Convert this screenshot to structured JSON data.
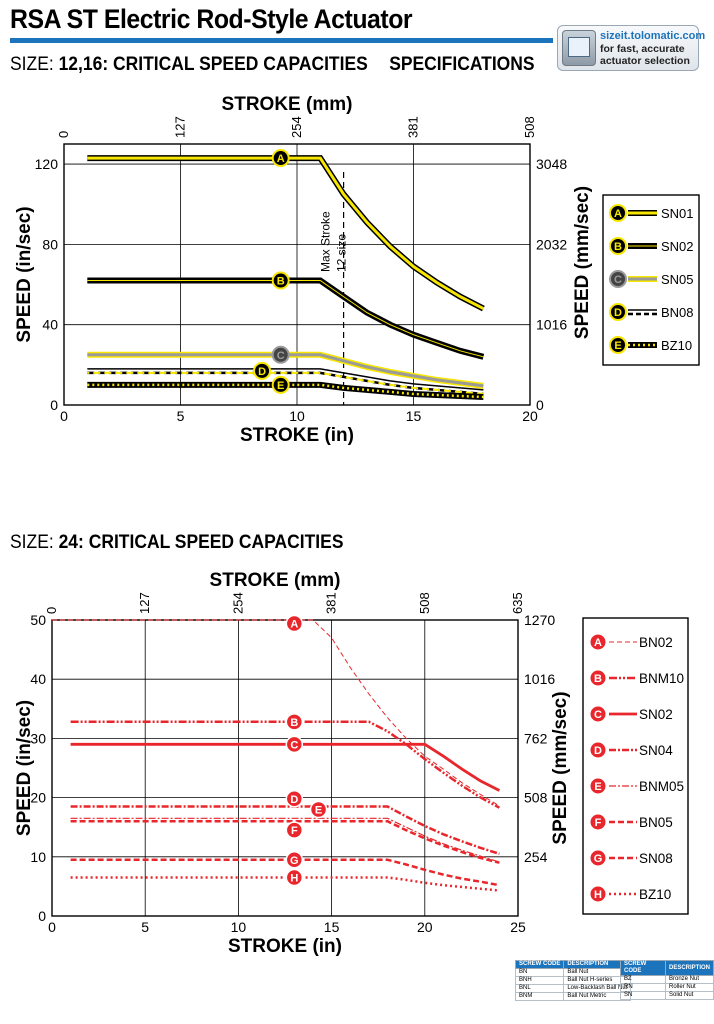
{
  "header": {
    "title": "RSA ST Electric Rod-Style Actuator",
    "accent_color": "#1c74bc",
    "sizeit": {
      "line1": "sizeit.tolomatic.com",
      "line2": "for fast, accurate",
      "line3": "actuator selection",
      "icon": "calculator-screen-icon"
    }
  },
  "section1": {
    "size_label": "SIZE:",
    "size_value": "12,16: CRITICAL SPEED CAPACITIES",
    "specs_label": "SPECIFICATIONS"
  },
  "section2": {
    "size_label": "SIZE:",
    "size_value": "24: CRITICAL SPEED CAPACITIES"
  },
  "chart_data": [
    {
      "type": "line",
      "title": "",
      "xlabel": "STROKE (in)",
      "x2label": "STROKE (mm)",
      "ylabel": "SPEED (in/sec)",
      "y2label": "SPEED (mm/sec)",
      "xlim": [
        0,
        20
      ],
      "ylim": [
        0,
        130
      ],
      "x_ticks": [
        0,
        5,
        10,
        15,
        20
      ],
      "y_ticks": [
        0,
        40,
        80,
        120
      ],
      "x2_ticks": [
        {
          "x": 0,
          "label": "0"
        },
        {
          "x": 5,
          "label": "127"
        },
        {
          "x": 10,
          "label": "254"
        },
        {
          "x": 15,
          "label": "381"
        },
        {
          "x": 20,
          "label": "508"
        }
      ],
      "y2_ticks": [
        {
          "y": 0,
          "label": "0"
        },
        {
          "y": 40,
          "label": "1016"
        },
        {
          "y": 80,
          "label": "2032"
        },
        {
          "y": 120,
          "label": "3048"
        }
      ],
      "grid": true,
      "legend_position": "right",
      "annotation": {
        "text_lines": [
          "Max Stroke",
          "12 size"
        ],
        "x": 12
      },
      "series": [
        {
          "name": "SN01",
          "marker": "A",
          "style": "solid-yellow",
          "label_x": 9.3,
          "x": [
            1,
            11,
            12,
            13,
            14,
            15,
            16,
            17,
            18
          ],
          "y": [
            123,
            123,
            105,
            91,
            79,
            69,
            61,
            54,
            48
          ]
        },
        {
          "name": "SN02",
          "marker": "B",
          "style": "solid-black",
          "label_x": 9.3,
          "x": [
            1,
            11,
            12,
            13,
            14,
            15,
            16,
            17,
            18
          ],
          "y": [
            62,
            62,
            54,
            46,
            40,
            35,
            31,
            27,
            24
          ]
        },
        {
          "name": "SN05",
          "marker": "C",
          "style": "solid-gray",
          "label_x": 9.3,
          "x": [
            1,
            11,
            12,
            13,
            14,
            15,
            16,
            17,
            18
          ],
          "y": [
            25,
            25,
            22,
            19,
            16.5,
            14.5,
            12.5,
            11,
            9.5
          ]
        },
        {
          "name": "BN08",
          "marker": "D",
          "style": "dashed-yellow",
          "label_x": 8.5,
          "x": [
            1,
            11,
            12,
            13,
            14,
            15,
            16,
            17,
            18
          ],
          "y": [
            17,
            17,
            15,
            13,
            11,
            9.5,
            8.5,
            7.5,
            6.5
          ]
        },
        {
          "name": "BZ10",
          "marker": "E",
          "style": "dotted-yellow",
          "label_x": 9.3,
          "x": [
            1,
            11,
            12,
            13,
            14,
            15,
            16,
            17,
            18
          ],
          "y": [
            10,
            10,
            8.5,
            7.5,
            6.5,
            5.5,
            5,
            4.5,
            4
          ]
        }
      ]
    },
    {
      "type": "line",
      "title": "",
      "xlabel": "STROKE (in)",
      "x2label": "STROKE (mm)",
      "ylabel": "SPEED (in/sec)",
      "y2label": "SPEED (mm/sec)",
      "xlim": [
        0,
        25
      ],
      "ylim": [
        0,
        50
      ],
      "x_ticks": [
        0,
        5,
        10,
        15,
        20,
        25
      ],
      "y_ticks": [
        0,
        10,
        20,
        30,
        40,
        50
      ],
      "x2_ticks": [
        {
          "x": 0,
          "label": "0"
        },
        {
          "x": 5,
          "label": "127"
        },
        {
          "x": 10,
          "label": "254"
        },
        {
          "x": 15,
          "label": "381"
        },
        {
          "x": 20,
          "label": "508"
        },
        {
          "x": 25,
          "label": "635"
        }
      ],
      "y2_ticks": [
        {
          "y": 10,
          "label": "254"
        },
        {
          "y": 20,
          "label": "508"
        },
        {
          "y": 30,
          "label": "762"
        },
        {
          "y": 40,
          "label": "1016"
        },
        {
          "y": 50,
          "label": "1270"
        }
      ],
      "grid": true,
      "legend_position": "right",
      "color": "#e8262b",
      "series": [
        {
          "name": "BN02",
          "marker": "A",
          "style": "thin-dash",
          "label_x": 13,
          "label_y": 49.4,
          "x": [
            0,
            14,
            15,
            16,
            17,
            18,
            19,
            20,
            21,
            22,
            23,
            24
          ],
          "y": [
            50,
            50,
            47,
            42,
            37.5,
            33.5,
            30,
            27,
            24.8,
            22.5,
            20.5,
            18.6
          ]
        },
        {
          "name": "BNM10",
          "marker": "B",
          "style": "dash-dot-dot",
          "label_x": 13,
          "label_y": 32.8,
          "x": [
            1,
            17,
            18,
            19,
            20,
            21,
            22,
            23,
            24
          ],
          "y": [
            32.8,
            32.8,
            31.2,
            29,
            26.5,
            24.2,
            22,
            20,
            18.3
          ]
        },
        {
          "name": "SN02",
          "marker": "C",
          "style": "solid",
          "label_x": 13,
          "label_y": 29,
          "x": [
            1,
            20,
            21,
            22,
            23,
            24
          ],
          "y": [
            29,
            29,
            27,
            24.8,
            22.8,
            21.2
          ]
        },
        {
          "name": "SN04",
          "marker": "D",
          "style": "dash-dot",
          "label_x": 13,
          "label_y": 19.8,
          "x": [
            1,
            18,
            19,
            20,
            21,
            22,
            23,
            24
          ],
          "y": [
            18.5,
            18.5,
            16.8,
            15.2,
            13.8,
            12.6,
            11.5,
            10.5
          ]
        },
        {
          "name": "BNM05",
          "marker": "E",
          "style": "thin-dash-dot",
          "label_x": 14.3,
          "label_y": 18,
          "x": [
            1,
            18,
            19,
            20,
            21,
            22,
            23,
            24
          ],
          "y": [
            16.5,
            16.5,
            15,
            13.5,
            12.2,
            11.1,
            10.1,
            9.1
          ]
        },
        {
          "name": "BN05",
          "marker": "F",
          "style": "dash",
          "label_x": 13,
          "label_y": 14.5,
          "x": [
            1,
            18,
            19,
            20,
            21,
            22,
            23,
            24
          ],
          "y": [
            16,
            16,
            14.5,
            13.1,
            11.9,
            10.8,
            9.8,
            9
          ]
        },
        {
          "name": "SN08",
          "marker": "G",
          "style": "dash",
          "label_x": 13,
          "label_y": 9.5,
          "x": [
            1,
            18,
            19,
            20,
            21,
            22,
            23,
            24
          ],
          "y": [
            9.5,
            9.5,
            8.7,
            7.8,
            7,
            6.3,
            5.8,
            5.2
          ]
        },
        {
          "name": "BZ10",
          "marker": "H",
          "style": "dot",
          "label_x": 13,
          "label_y": 6.5,
          "x": [
            1,
            18,
            19,
            20,
            21,
            22,
            23,
            24
          ],
          "y": [
            6.5,
            6.5,
            6.1,
            5.6,
            5.2,
            4.9,
            4.6,
            4.3
          ]
        }
      ]
    }
  ],
  "abbrev_tables": {
    "left": {
      "headers": [
        "SCREW CODE",
        "DESCRIPTION"
      ],
      "rows": [
        [
          "BN",
          "Ball Nut"
        ],
        [
          "BNH",
          "Ball Nut H-series"
        ],
        [
          "BNL",
          "Low-Backlash Ball Nut"
        ],
        [
          "BNM",
          "Ball Nut Metric"
        ]
      ]
    },
    "right": {
      "headers": [
        "SCREW CODE",
        "DESCRIPTION"
      ],
      "rows": [
        [
          "BZ",
          "Bronze Nut"
        ],
        [
          "RN",
          "Roller Nut"
        ],
        [
          "SN",
          "Solid Nut"
        ]
      ]
    }
  }
}
